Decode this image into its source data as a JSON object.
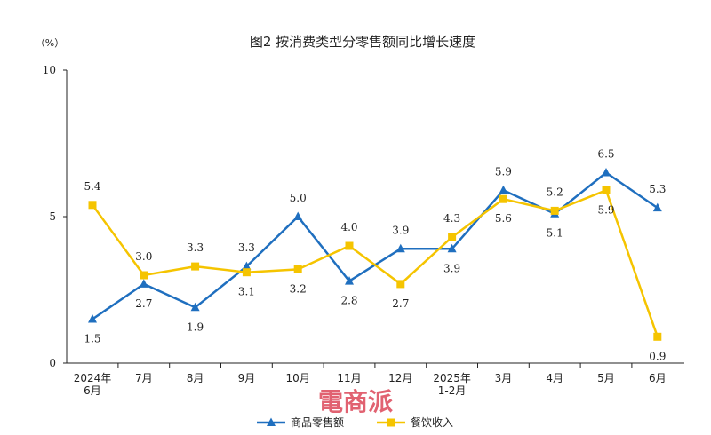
{
  "chart_data": {
    "type": "line",
    "title": "图2 按消费类型分零售额同比增长速度",
    "y_unit": "（%）",
    "ylim": [
      0,
      10
    ],
    "yticks": [
      0,
      5,
      10
    ],
    "categories": [
      [
        "2024年",
        "6月"
      ],
      [
        "7月"
      ],
      [
        "8月"
      ],
      [
        "9月"
      ],
      [
        "10月"
      ],
      [
        "11月"
      ],
      [
        "12月"
      ],
      [
        "2025年",
        "1-2月"
      ],
      [
        "3月"
      ],
      [
        "4月"
      ],
      [
        "5月"
      ],
      [
        "6月"
      ]
    ],
    "series": [
      {
        "name": "商品零售额",
        "color": "#1f6fbf",
        "marker": "triangle",
        "values": [
          1.5,
          2.7,
          1.9,
          3.3,
          5.0,
          2.8,
          3.9,
          3.9,
          5.9,
          5.1,
          6.5,
          5.3
        ],
        "labels": [
          "1.5",
          "2.7",
          "1.9",
          "3.3",
          "5.0",
          "2.8",
          "3.9",
          "3.9",
          "5.9",
          "5.1",
          "6.5",
          "5.3"
        ]
      },
      {
        "name": "餐饮收入",
        "color": "#f5c400",
        "marker": "square",
        "values": [
          5.4,
          3.0,
          3.3,
          3.1,
          3.2,
          4.0,
          2.7,
          4.3,
          5.6,
          5.2,
          5.9,
          0.9
        ],
        "labels": [
          "5.4",
          "3.0",
          "3.3",
          "3.1",
          "3.2",
          "4.0",
          "2.7",
          "4.3",
          "5.6",
          "5.2",
          "5.9",
          "0.9"
        ]
      }
    ],
    "grid": false,
    "legend_position": "bottom-center"
  },
  "watermark": {
    "text": "電商派",
    "color": "#e05a6a"
  }
}
